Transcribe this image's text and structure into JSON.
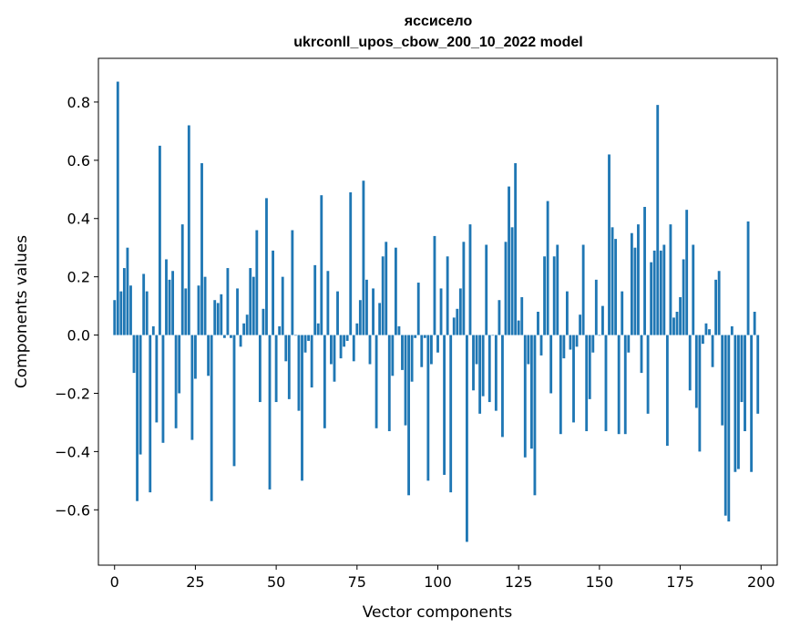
{
  "chart_data": {
    "type": "bar",
    "title": [
      "яссисело",
      "ukrconll_upos_cbow_200_10_2022 model"
    ],
    "xlabel": "Vector components",
    "ylabel": "Components values",
    "xlim": [
      -5,
      205
    ],
    "ylim": [
      -0.79,
      0.95
    ],
    "xticks": [
      0,
      25,
      50,
      75,
      100,
      125,
      150,
      175,
      200
    ],
    "xtick_labels": [
      "0",
      "25",
      "50",
      "75",
      "100",
      "125",
      "150",
      "175",
      "200"
    ],
    "yticks": [
      -0.6,
      -0.4,
      -0.2,
      0.0,
      0.2,
      0.4,
      0.6,
      0.8
    ],
    "ytick_labels": [
      "−0.6",
      "−0.4",
      "−0.2",
      "0.0",
      "0.2",
      "0.4",
      "0.6",
      "0.8"
    ],
    "bar_color": "#1f77b4",
    "grid": false,
    "values": [
      0.12,
      0.87,
      0.15,
      0.23,
      0.3,
      0.17,
      -0.13,
      -0.57,
      -0.41,
      0.21,
      0.15,
      -0.54,
      0.03,
      -0.3,
      0.65,
      -0.37,
      0.26,
      0.19,
      0.22,
      -0.32,
      -0.2,
      0.38,
      0.16,
      0.72,
      -0.36,
      -0.15,
      0.17,
      0.59,
      0.2,
      -0.14,
      -0.57,
      0.12,
      0.11,
      0.14,
      -0.01,
      0.23,
      -0.01,
      -0.45,
      0.16,
      -0.04,
      0.04,
      0.07,
      0.23,
      0.2,
      0.36,
      -0.23,
      0.09,
      0.47,
      -0.53,
      0.29,
      -0.23,
      0.03,
      0.2,
      -0.09,
      -0.22,
      0.36,
      0.0,
      -0.26,
      -0.5,
      -0.06,
      -0.02,
      -0.18,
      0.24,
      0.04,
      0.48,
      -0.32,
      0.22,
      -0.1,
      -0.16,
      0.15,
      -0.08,
      -0.04,
      -0.02,
      0.49,
      -0.09,
      0.04,
      0.12,
      0.53,
      0.19,
      -0.1,
      0.16,
      -0.32,
      0.11,
      0.27,
      0.32,
      -0.33,
      -0.14,
      0.3,
      0.03,
      -0.12,
      -0.31,
      -0.55,
      -0.16,
      -0.01,
      0.18,
      -0.11,
      -0.01,
      -0.5,
      -0.1,
      0.34,
      -0.06,
      0.16,
      -0.48,
      0.27,
      -0.54,
      0.06,
      0.09,
      0.16,
      0.32,
      -0.71,
      0.38,
      -0.19,
      -0.1,
      -0.27,
      -0.21,
      0.31,
      -0.23,
      0.0,
      -0.26,
      0.12,
      -0.35,
      0.32,
      0.51,
      0.37,
      0.59,
      0.05,
      0.13,
      -0.42,
      -0.1,
      -0.39,
      -0.55,
      0.08,
      -0.07,
      0.27,
      0.46,
      -0.2,
      0.27,
      0.31,
      -0.34,
      -0.08,
      0.15,
      -0.05,
      -0.3,
      -0.04,
      0.07,
      0.31,
      -0.33,
      -0.22,
      -0.06,
      0.19,
      0.0,
      0.1,
      -0.33,
      0.62,
      0.37,
      0.33,
      -0.34,
      0.15,
      -0.34,
      -0.06,
      0.35,
      0.3,
      0.38,
      -0.13,
      0.44,
      -0.27,
      0.25,
      0.29,
      0.79,
      0.29,
      0.31,
      -0.38,
      0.38,
      0.06,
      0.08,
      0.13,
      0.26,
      0.43,
      -0.19,
      0.31,
      -0.25,
      -0.4,
      -0.03,
      0.04,
      0.02,
      -0.11,
      0.19,
      0.22,
      -0.31,
      -0.62,
      -0.64,
      0.03,
      -0.47,
      -0.46,
      -0.23,
      -0.33,
      0.39,
      -0.47,
      0.08,
      -0.27
    ]
  }
}
